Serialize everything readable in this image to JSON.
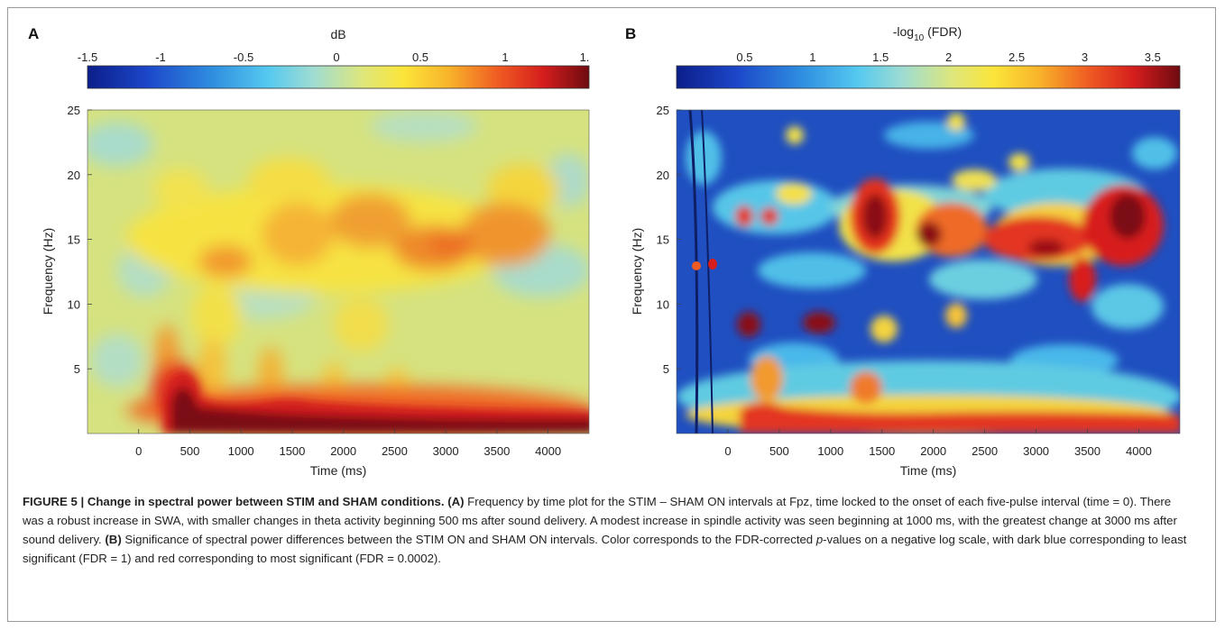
{
  "chart_data": [
    {
      "type": "heatmap",
      "panel": "A",
      "title": "",
      "colorbar_label": "dB",
      "colorbar_ticks": [
        "-1.5",
        "-1",
        "-0.5",
        "0",
        "0.5",
        "1",
        "1."
      ],
      "colorbar_range": [
        -1.5,
        1.5
      ],
      "xlabel": "Time (ms)",
      "ylabel": "Frequency (Hz)",
      "xlim": [
        -500,
        4400
      ],
      "ylim": [
        0,
        25
      ],
      "xticks": [
        0,
        500,
        1000,
        1500,
        2000,
        2500,
        3000,
        3500,
        4000
      ],
      "yticks": [
        5,
        10,
        15,
        20,
        25
      ],
      "colormap": "jet",
      "features": [
        {
          "time": [
            300,
            4400
          ],
          "freq": [
            0.5,
            3
          ],
          "value_db": 1.5
        },
        {
          "time": [
            1000,
            4000
          ],
          "freq": [
            12,
            18
          ],
          "value_db": 0.7
        },
        {
          "time": [
            2800,
            3400
          ],
          "freq": [
            13,
            17
          ],
          "value_db": 0.9
        }
      ]
    },
    {
      "type": "heatmap",
      "panel": "B",
      "title": "",
      "colorbar_label": "-log10 (FDR)",
      "colorbar_label_parts": [
        "-log",
        "10",
        " (FDR)"
      ],
      "colorbar_ticks": [
        "0.5",
        "1",
        "1.5",
        "2",
        "2.5",
        "3",
        "3.5"
      ],
      "colorbar_range": [
        0,
        3.7
      ],
      "xlabel": "Time (ms)",
      "ylabel": "Frequency (Hz)",
      "xlim": [
        -500,
        4400
      ],
      "ylim": [
        0,
        25
      ],
      "xticks": [
        0,
        500,
        1000,
        1500,
        2000,
        2500,
        3000,
        3500,
        4000
      ],
      "yticks": [
        5,
        10,
        15,
        20,
        25
      ],
      "colormap": "jet",
      "features": [
        {
          "time": [
            0,
            4400
          ],
          "freq": [
            0.5,
            3
          ],
          "value": 3.3
        },
        {
          "time": [
            1400,
            4100
          ],
          "freq": [
            13,
            18
          ],
          "value": 3.5
        },
        {
          "time": [
            900,
            1000
          ],
          "freq": [
            8,
            9
          ],
          "value": 3.6
        },
        {
          "time": [
            300,
            400
          ],
          "freq": [
            8,
            9
          ],
          "value": 3.6
        }
      ]
    }
  ],
  "caption": {
    "title": "FIGURE 5 | Change in spectral power between STIM and SHAM conditions.",
    "a_label": "(A)",
    "a_text": " Frequency by time plot for the STIM – SHAM ON intervals at Fpz, time locked to the onset of each five-pulse interval (time = 0). There was a robust increase in SWA, with smaller changes in theta activity beginning 500 ms after sound delivery. A modest increase in spindle activity was seen beginning at 1000 ms, with the greatest change at 3000 ms after sound delivery.",
    "b_label": "(B)",
    "b_text_1": " Significance of spectral power differences between the STIM ON and SHAM ON intervals. Color corresponds to the FDR-corrected ",
    "b_pvalue": "p",
    "b_text_2": "-values on a negative log scale, with dark blue corresponding to least significant (FDR = 1) and red corresponding to most significant (FDR = 0.0002)."
  }
}
